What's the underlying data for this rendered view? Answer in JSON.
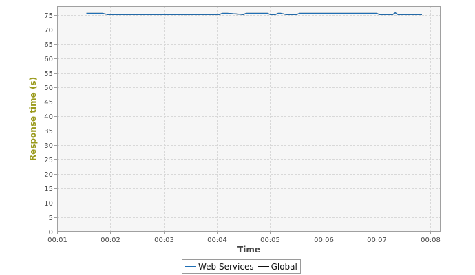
{
  "chart_data": {
    "type": "line",
    "xlabel": "Time",
    "ylabel": "Response time (s)",
    "xlim": [
      1,
      8.2
    ],
    "ylim": [
      0,
      78
    ],
    "x_ticks": [
      {
        "value": 1,
        "label": "00:01"
      },
      {
        "value": 2,
        "label": "00:02"
      },
      {
        "value": 3,
        "label": "00:03"
      },
      {
        "value": 4,
        "label": "00:04"
      },
      {
        "value": 5,
        "label": "00:05"
      },
      {
        "value": 6,
        "label": "00:06"
      },
      {
        "value": 7,
        "label": "00:07"
      },
      {
        "value": 8,
        "label": "00:08"
      }
    ],
    "y_ticks": [
      0,
      5,
      10,
      15,
      20,
      25,
      30,
      35,
      40,
      45,
      50,
      55,
      60,
      65,
      70,
      75
    ],
    "grid": true,
    "legend_position": "bottom-center",
    "series": [
      {
        "name": "Web Services",
        "color": "#1f6fb5",
        "x": [
          1.55,
          1.85,
          1.95,
          4.05,
          4.1,
          4.2,
          4.5,
          4.55,
          4.95,
          5.0,
          5.1,
          5.15,
          5.2,
          5.3,
          5.5,
          5.55,
          7.0,
          7.05,
          7.3,
          7.35,
          7.4,
          7.85
        ],
        "y": [
          75.5,
          75.5,
          75.1,
          75.1,
          75.5,
          75.5,
          75.1,
          75.5,
          75.5,
          75.1,
          75.1,
          75.5,
          75.5,
          75.1,
          75.1,
          75.5,
          75.5,
          75.1,
          75.1,
          75.7,
          75.1,
          75.1
        ]
      },
      {
        "name": "Global",
        "color": "#111111",
        "x": [
          1.55,
          1.85,
          1.95,
          4.05,
          4.1,
          4.2,
          4.5,
          4.55,
          4.95,
          5.0,
          5.1,
          5.15,
          5.2,
          5.3,
          5.5,
          5.55,
          7.0,
          7.05,
          7.3,
          7.35,
          7.4,
          7.85
        ],
        "y": [
          75.5,
          75.5,
          75.1,
          75.1,
          75.5,
          75.5,
          75.1,
          75.5,
          75.5,
          75.1,
          75.1,
          75.5,
          75.5,
          75.1,
          75.1,
          75.5,
          75.5,
          75.1,
          75.1,
          75.7,
          75.1,
          75.1
        ]
      }
    ]
  },
  "style": {
    "plot_background": "#f6f6f6",
    "grid_color": "#d8d8d8",
    "axis_color": "#a0a0a0",
    "ylabel_color": "#9a9a1c",
    "xlabel_color": "#444444"
  }
}
